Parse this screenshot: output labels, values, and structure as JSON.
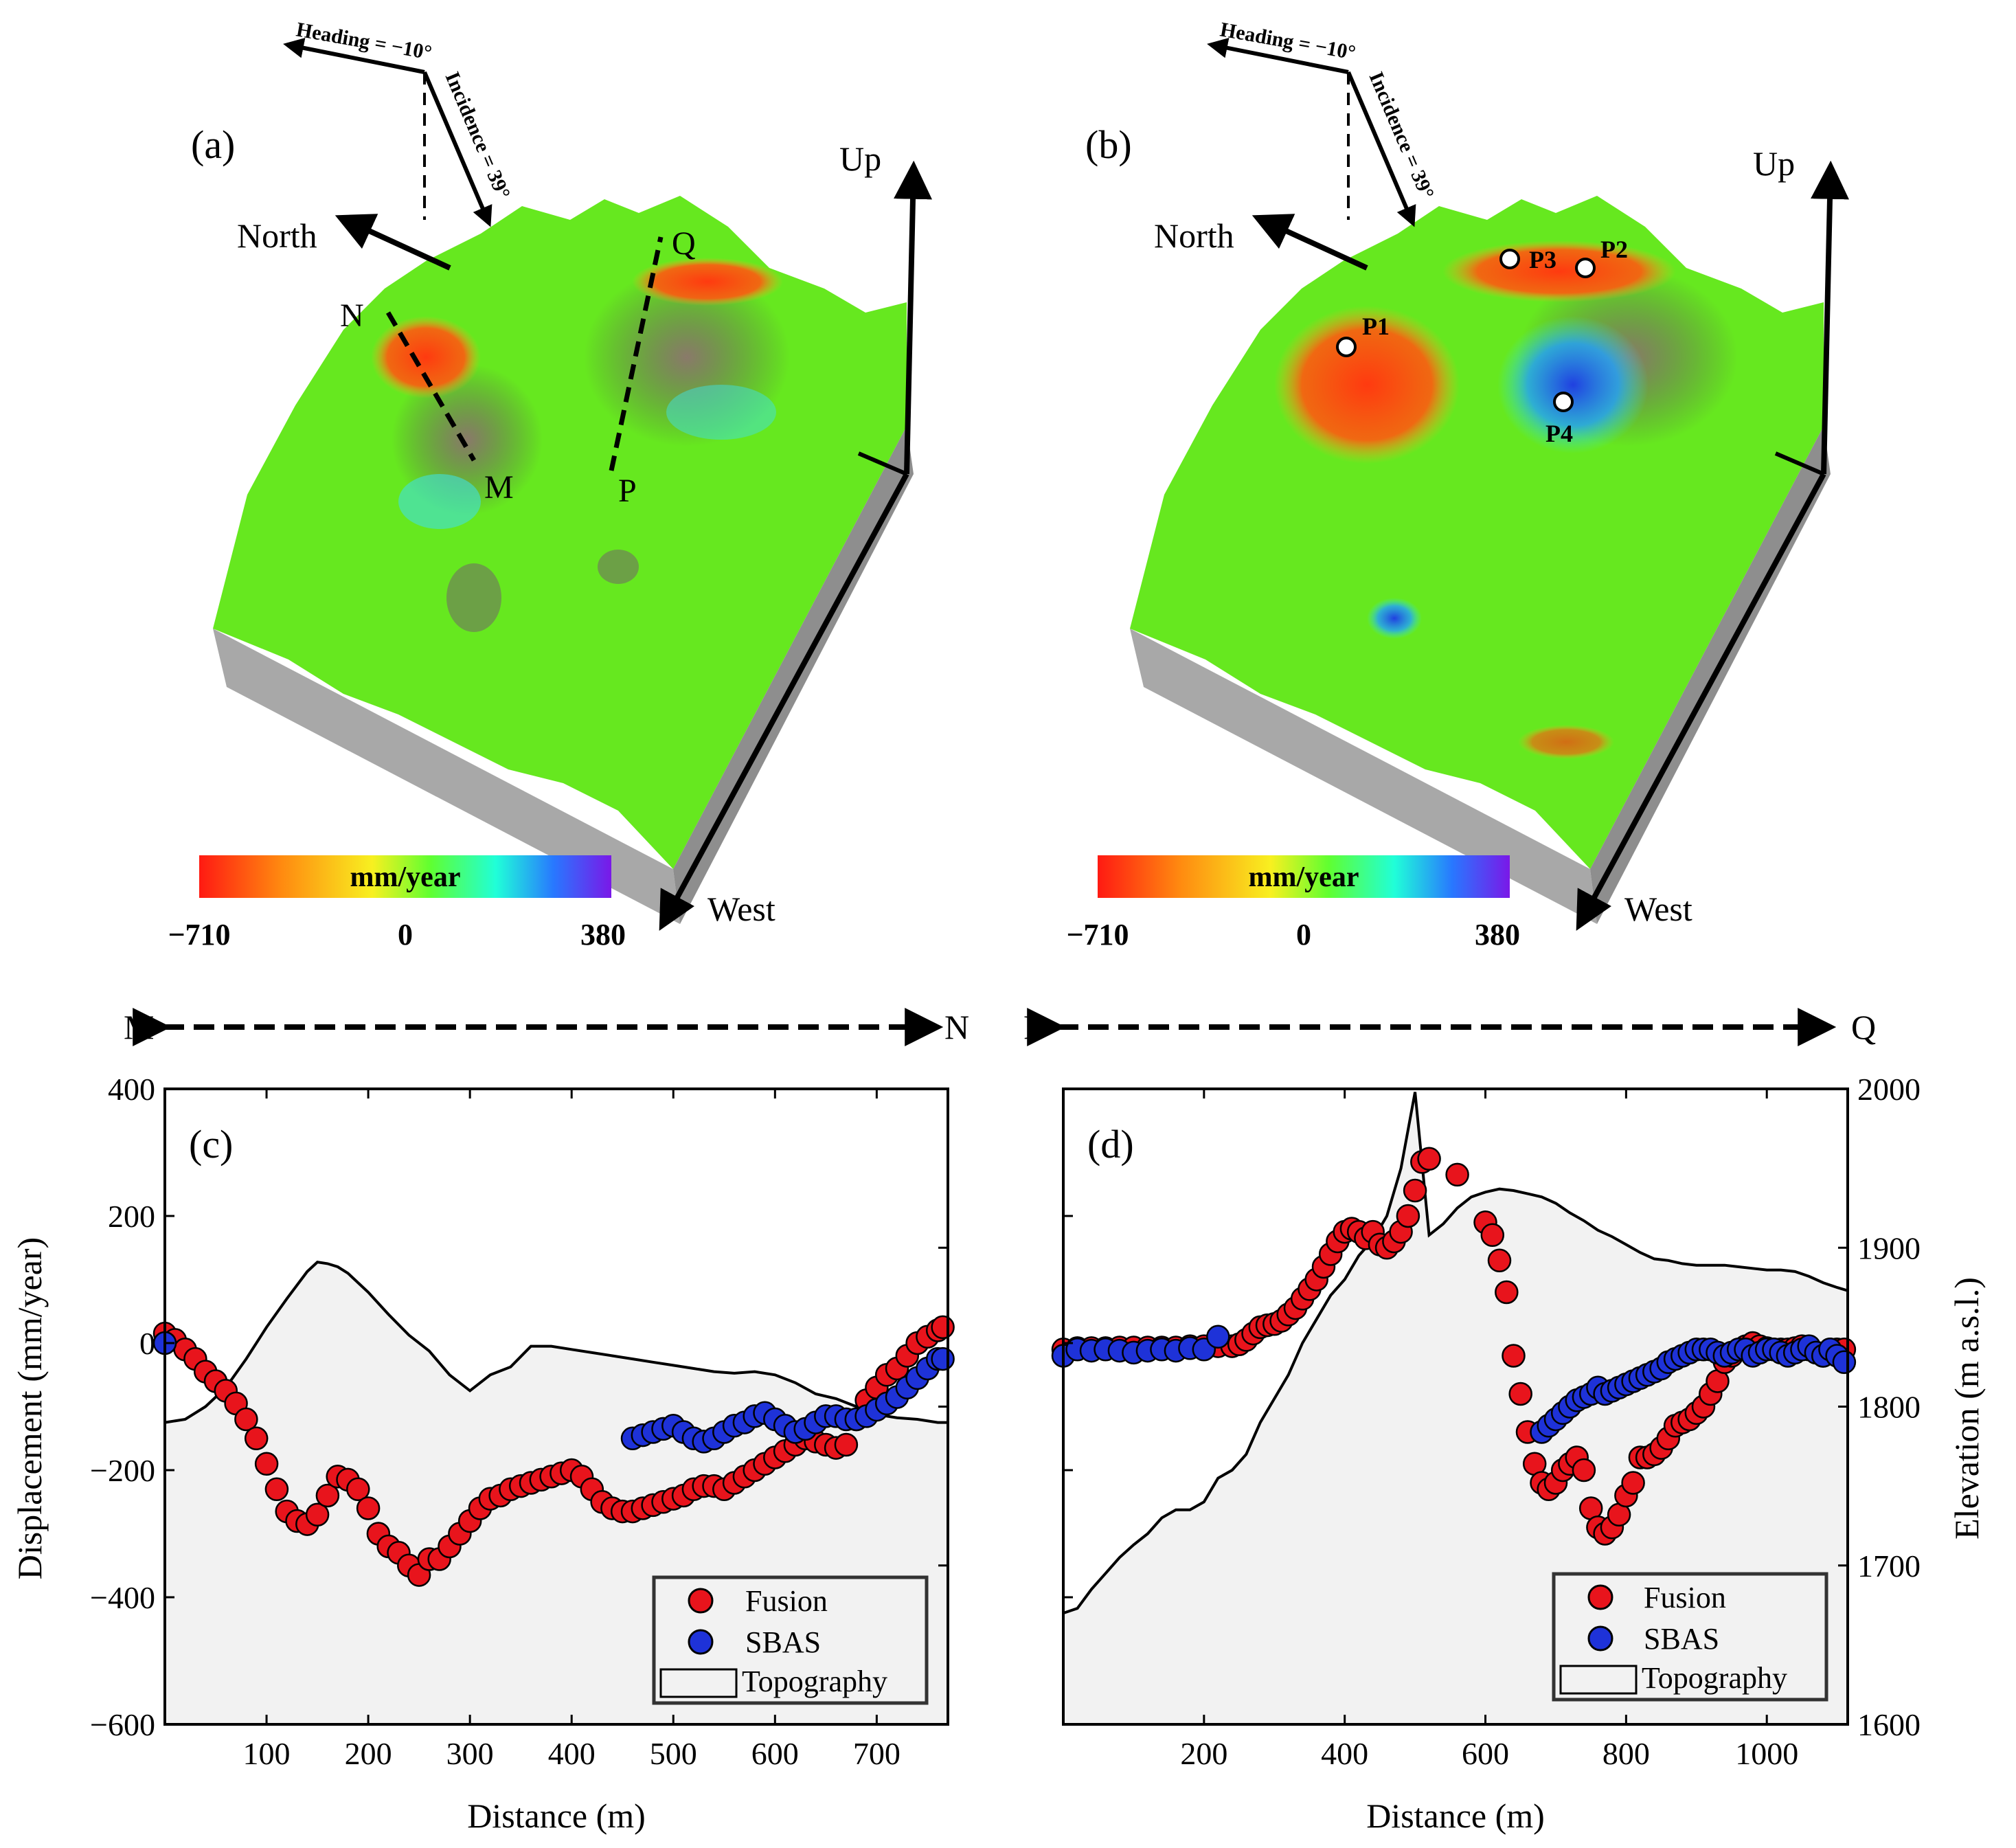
{
  "panels_3d": [
    {
      "panel_label": "(a)",
      "heading": "Heading = −10°",
      "incidence": "Incidence = 39°",
      "north": "North",
      "up": "Up",
      "west": "West",
      "colorbar_unit": "mm/year",
      "colorbar_ticks": [
        "−710",
        "0",
        "380"
      ],
      "colorbar_range": [
        -710,
        380
      ],
      "profile_labels": [
        "N",
        "M",
        "Q",
        "P"
      ],
      "colors": {
        "terrain": "#66e81f",
        "deform_red": "#ff3a10",
        "deform_blue": "#3070ff",
        "box_side": "#8a8a8a"
      }
    },
    {
      "panel_label": "(b)",
      "heading": "Heading = −10°",
      "incidence": "Incidence = 39°",
      "north": "North",
      "up": "Up",
      "west": "West",
      "colorbar_unit": "mm/year",
      "colorbar_ticks": [
        "−710",
        "0",
        "380"
      ],
      "colorbar_range": [
        -710,
        380
      ],
      "points": [
        "P1",
        "P2",
        "P3",
        "P4"
      ]
    }
  ],
  "profiles": [
    {
      "start": "M",
      "end": "N"
    },
    {
      "start": "P",
      "end": "Q"
    }
  ],
  "chart_data": [
    {
      "type": "scatter",
      "panel_label": "(c)",
      "xlabel": "Distance (m)",
      "ylabel": "Displacement (mm/year)",
      "xlim": [
        0,
        770
      ],
      "ylim": [
        -600,
        400
      ],
      "xticks": [
        "100",
        "200",
        "300",
        "400",
        "500",
        "600",
        "700"
      ],
      "xtick_values": [
        100,
        200,
        300,
        400,
        500,
        600,
        700
      ],
      "yticks": [
        "400",
        "200",
        "0",
        "−200",
        "−400",
        "−600"
      ],
      "ytick_values": [
        400,
        200,
        0,
        -200,
        -400,
        -600
      ],
      "y2lim": [
        1600,
        2000
      ],
      "legend": [
        "Fusion",
        "SBAS",
        "Topography"
      ],
      "series": [
        {
          "name": "Fusion",
          "color": "#e8141c",
          "x": [
            0,
            10,
            20,
            30,
            40,
            50,
            60,
            70,
            80,
            90,
            100,
            110,
            120,
            130,
            140,
            150,
            160,
            170,
            180,
            190,
            200,
            210,
            220,
            230,
            240,
            250,
            260,
            270,
            280,
            290,
            300,
            310,
            320,
            330,
            340,
            350,
            360,
            370,
            380,
            390,
            400,
            410,
            420,
            430,
            440,
            450,
            460,
            470,
            480,
            490,
            500,
            510,
            520,
            530,
            540,
            550,
            560,
            570,
            580,
            590,
            600,
            610,
            620,
            630,
            640,
            650,
            660,
            670,
            680,
            690,
            700,
            710,
            720,
            730,
            740,
            750,
            760,
            765
          ],
          "y": [
            15,
            5,
            -10,
            -25,
            -45,
            -60,
            -75,
            -95,
            -120,
            -150,
            -190,
            -230,
            -265,
            -280,
            -285,
            -270,
            -240,
            -210,
            -215,
            -230,
            -260,
            -300,
            -320,
            -330,
            -350,
            -365,
            -340,
            -340,
            -320,
            -300,
            -280,
            -260,
            -245,
            -240,
            -230,
            -225,
            -220,
            -215,
            -210,
            -205,
            -200,
            -210,
            -230,
            -250,
            -260,
            -265,
            -265,
            -260,
            -255,
            -250,
            -245,
            -240,
            -230,
            -225,
            -225,
            -230,
            -220,
            -210,
            -200,
            -190,
            -180,
            -170,
            -160,
            -150,
            -155,
            -160,
            -165,
            -160,
            -120,
            -90,
            -70,
            -50,
            -40,
            -20,
            0,
            10,
            20,
            25
          ]
        },
        {
          "name": "SBAS",
          "color": "#1e32d8",
          "x": [
            0,
            460,
            470,
            480,
            490,
            500,
            510,
            520,
            530,
            540,
            550,
            560,
            570,
            580,
            590,
            600,
            610,
            620,
            630,
            640,
            650,
            660,
            670,
            680,
            690,
            700,
            710,
            720,
            730,
            740,
            750,
            760,
            765
          ],
          "y": [
            0,
            -150,
            -145,
            -140,
            -135,
            -130,
            -140,
            -150,
            -155,
            -150,
            -140,
            -130,
            -125,
            -115,
            -110,
            -120,
            -130,
            -140,
            -135,
            -125,
            -115,
            -115,
            -120,
            -120,
            -115,
            -105,
            -95,
            -85,
            -70,
            -55,
            -40,
            -25,
            -25
          ]
        },
        {
          "name": "Topography",
          "color": "#000000",
          "fill": "#f2f2f2",
          "axis": "right",
          "x": [
            0,
            20,
            40,
            60,
            80,
            100,
            120,
            140,
            150,
            160,
            170,
            180,
            200,
            220,
            240,
            260,
            280,
            300,
            320,
            340,
            360,
            380,
            400,
            420,
            440,
            460,
            480,
            500,
            520,
            540,
            560,
            580,
            600,
            620,
            640,
            660,
            680,
            700,
            720,
            740,
            760,
            770
          ],
          "y": [
            1790,
            1792,
            1800,
            1812,
            1830,
            1850,
            1868,
            1885,
            1891,
            1890,
            1888,
            1884,
            1872,
            1858,
            1845,
            1835,
            1820,
            1810,
            1820,
            1825,
            1838,
            1838,
            1836,
            1834,
            1832,
            1830,
            1828,
            1826,
            1824,
            1822,
            1821,
            1822,
            1820,
            1815,
            1808,
            1805,
            1800,
            1795,
            1793,
            1792,
            1790,
            1790
          ]
        }
      ]
    },
    {
      "type": "scatter",
      "panel_label": "(d)",
      "xlabel": "Distance (m)",
      "ylabel": "Elevation (m a.s.l.)",
      "xlim": [
        0,
        1115
      ],
      "ylim": [
        -600,
        400
      ],
      "xticks": [
        "200",
        "400",
        "600",
        "800",
        "1000"
      ],
      "xtick_values": [
        200,
        400,
        600,
        800,
        1000
      ],
      "y2lim": [
        1600,
        2000
      ],
      "y2ticks": [
        "2000",
        "1900",
        "1800",
        "1700",
        "1600"
      ],
      "y2tick_values": [
        2000,
        1900,
        1800,
        1700,
        1600
      ],
      "legend": [
        "Fusion",
        "SBAS",
        "Topography"
      ],
      "series": [
        {
          "name": "Fusion",
          "color": "#e8141c",
          "x": [
            0,
            20,
            40,
            60,
            80,
            100,
            120,
            140,
            160,
            180,
            200,
            220,
            240,
            250,
            260,
            270,
            280,
            290,
            300,
            310,
            320,
            330,
            340,
            350,
            360,
            370,
            380,
            390,
            400,
            410,
            420,
            430,
            440,
            450,
            460,
            470,
            480,
            490,
            500,
            510,
            520,
            560,
            600,
            610,
            620,
            630,
            640,
            650,
            660,
            670,
            680,
            690,
            700,
            710,
            720,
            730,
            740,
            750,
            760,
            770,
            780,
            790,
            800,
            810,
            820,
            830,
            840,
            850,
            860,
            870,
            880,
            890,
            900,
            910,
            920,
            930,
            940,
            950,
            960,
            970,
            980,
            990,
            1000,
            1010,
            1020,
            1030,
            1040,
            1050,
            1060,
            1070,
            1080,
            1090,
            1100,
            1110
          ],
          "y": [
            -10,
            -8,
            -8,
            -8,
            -7,
            -7,
            -7,
            -7,
            -7,
            -5,
            -5,
            -5,
            -5,
            -2,
            5,
            15,
            25,
            28,
            30,
            35,
            45,
            55,
            70,
            85,
            100,
            120,
            140,
            160,
            175,
            180,
            175,
            165,
            175,
            155,
            150,
            160,
            175,
            200,
            240,
            285,
            290,
            265,
            190,
            170,
            130,
            80,
            -20,
            -80,
            -140,
            -190,
            -220,
            -230,
            -220,
            -200,
            -190,
            -180,
            -200,
            -260,
            -290,
            -300,
            -290,
            -270,
            -240,
            -220,
            -180,
            -180,
            -175,
            -165,
            -150,
            -130,
            -125,
            -120,
            -110,
            -100,
            -80,
            -60,
            -30,
            -20,
            -10,
            -5,
            0,
            -5,
            -8,
            -10,
            -10,
            -10,
            -8,
            -5,
            -10,
            -15,
            -20,
            -10,
            -10,
            -10
          ]
        },
        {
          "name": "SBAS",
          "color": "#1e32d8",
          "x": [
            0,
            20,
            40,
            60,
            80,
            100,
            120,
            140,
            160,
            180,
            200,
            220,
            680,
            690,
            700,
            710,
            720,
            730,
            740,
            750,
            760,
            770,
            780,
            790,
            800,
            810,
            820,
            830,
            840,
            850,
            860,
            870,
            880,
            890,
            900,
            910,
            920,
            930,
            940,
            950,
            960,
            970,
            980,
            990,
            1000,
            1010,
            1020,
            1030,
            1040,
            1050,
            1060,
            1070,
            1080,
            1090,
            1100,
            1110
          ],
          "y": [
            -20,
            -10,
            -12,
            -10,
            -12,
            -15,
            -12,
            -10,
            -12,
            -8,
            -10,
            10,
            -140,
            -130,
            -120,
            -110,
            -100,
            -90,
            -85,
            -80,
            -70,
            -80,
            -75,
            -70,
            -65,
            -60,
            -55,
            -50,
            -45,
            -40,
            -30,
            -25,
            -20,
            -15,
            -10,
            -10,
            -10,
            -15,
            -20,
            -15,
            -10,
            -10,
            -20,
            -15,
            -10,
            -10,
            -15,
            -20,
            -15,
            -10,
            -5,
            -15,
            -20,
            -10,
            -20,
            -30
          ]
        },
        {
          "name": "Topography",
          "color": "#000000",
          "fill": "#f2f2f2",
          "axis": "right",
          "x": [
            0,
            20,
            40,
            60,
            80,
            100,
            120,
            140,
            160,
            180,
            200,
            220,
            240,
            260,
            280,
            300,
            320,
            340,
            360,
            380,
            400,
            420,
            440,
            460,
            480,
            500,
            520,
            540,
            560,
            580,
            600,
            620,
            640,
            660,
            680,
            700,
            720,
            740,
            760,
            780,
            800,
            820,
            840,
            860,
            880,
            900,
            920,
            940,
            960,
            980,
            1000,
            1020,
            1040,
            1060,
            1080,
            1100,
            1115
          ],
          "y": [
            1670,
            1673,
            1685,
            1695,
            1705,
            1713,
            1720,
            1730,
            1735,
            1735,
            1740,
            1755,
            1760,
            1770,
            1790,
            1805,
            1820,
            1840,
            1855,
            1870,
            1880,
            1895,
            1905,
            1920,
            1950,
            1998,
            1908,
            1915,
            1925,
            1932,
            1935,
            1937,
            1936,
            1934,
            1932,
            1928,
            1922,
            1917,
            1911,
            1907,
            1902,
            1897,
            1893,
            1892,
            1890,
            1889,
            1889,
            1889,
            1888,
            1887,
            1886,
            1886,
            1885,
            1882,
            1878,
            1875,
            1873
          ]
        }
      ]
    }
  ]
}
